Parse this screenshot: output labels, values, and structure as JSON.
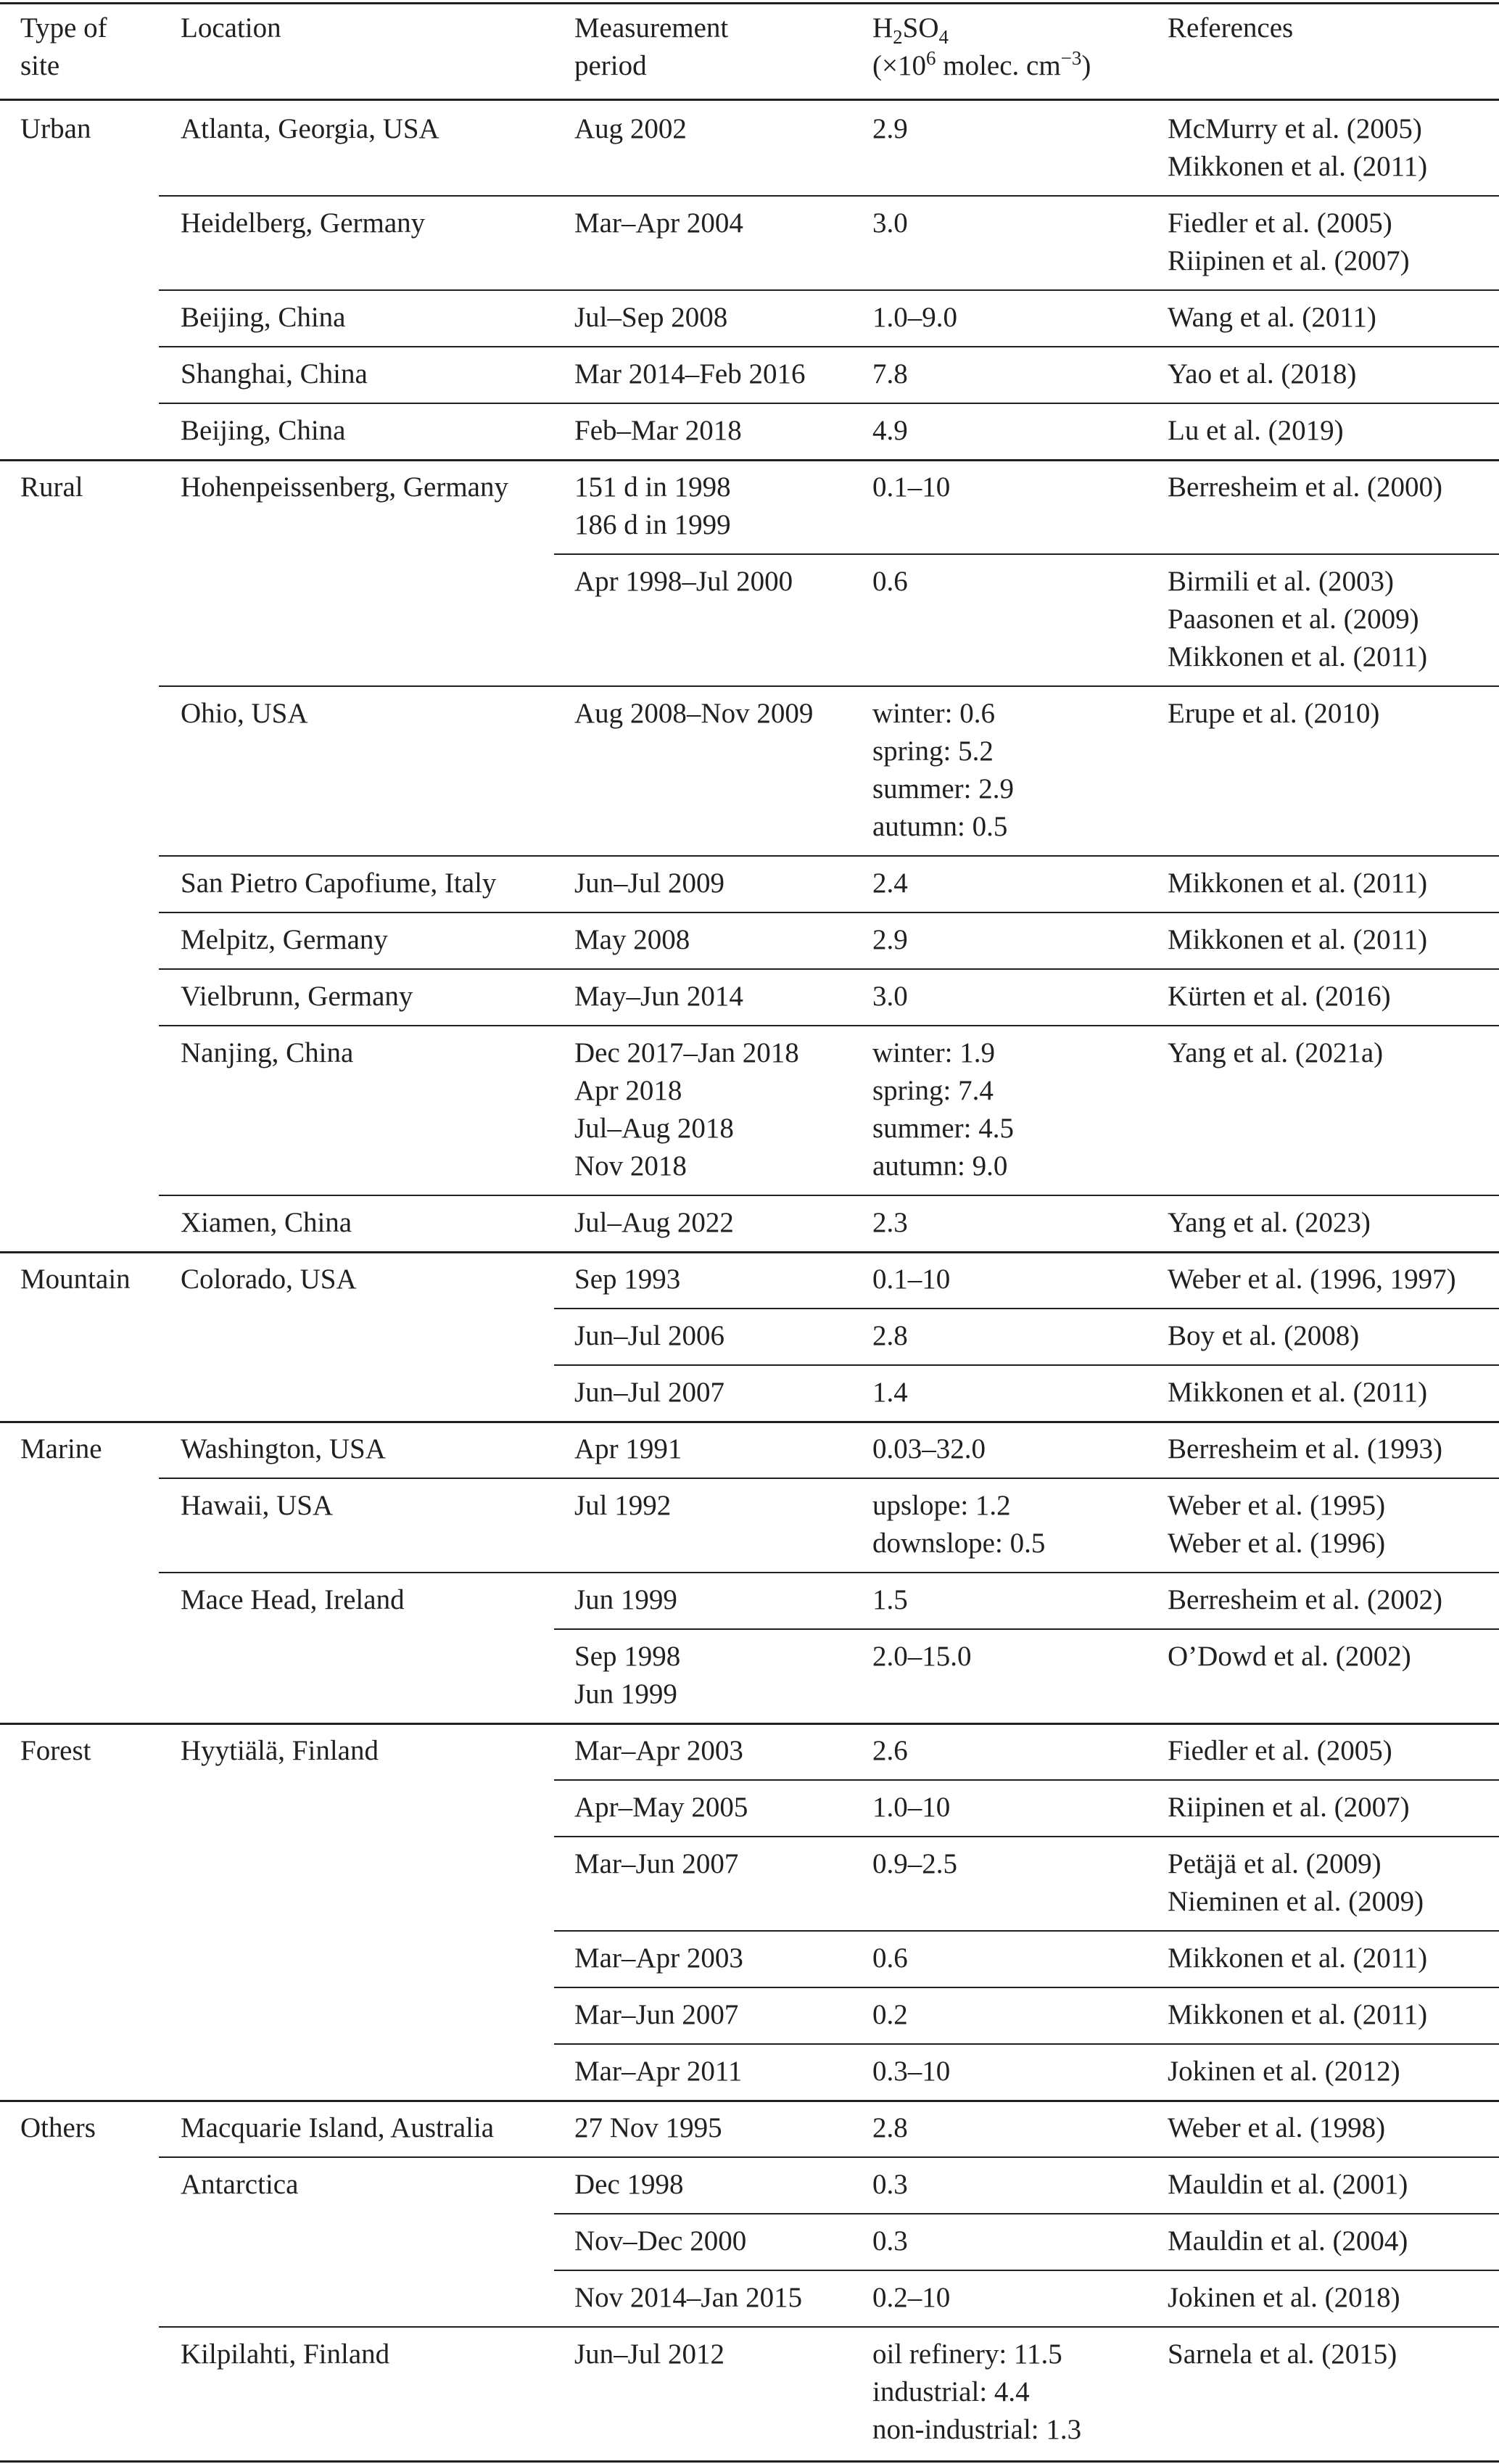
{
  "header": {
    "site": [
      "Type of",
      "site"
    ],
    "location": "Location",
    "period": [
      "Measurement",
      "period"
    ],
    "h2so4": {
      "h": "H",
      "sub1": "2",
      "so": "SO",
      "sub2": "4",
      "unit_pre": "(×10",
      "sup1": "6",
      "unit_mid": " molec. cm",
      "sup2": "−3",
      "unit_post": ")"
    },
    "references": "References"
  },
  "rows": [
    {
      "site": "Urban",
      "location": "Atlanta, Georgia, USA",
      "period": [
        "Aug 2002"
      ],
      "value": [
        "2.9"
      ],
      "refs": [
        "McMurry et al. (2005)",
        "Mikkonen et al. (2011)"
      ]
    },
    {
      "site": "",
      "location": "Heidelberg, Germany",
      "period": [
        "Mar–Apr 2004"
      ],
      "value": [
        "3.0"
      ],
      "refs": [
        "Fiedler et al. (2005)",
        "Riipinen et al. (2007)"
      ]
    },
    {
      "site": "",
      "location": "Beijing, China",
      "period": [
        "Jul–Sep 2008"
      ],
      "value": [
        "1.0–9.0"
      ],
      "refs": [
        "Wang et al. (2011)"
      ]
    },
    {
      "site": "",
      "location": "Shanghai, China",
      "period": [
        "Mar 2014–Feb 2016"
      ],
      "value": [
        "7.8"
      ],
      "refs": [
        "Yao et al. (2018)"
      ]
    },
    {
      "site": "",
      "location": "Beijing, China",
      "period": [
        "Feb–Mar 2018"
      ],
      "value": [
        "4.9"
      ],
      "refs": [
        "Lu et al. (2019)"
      ]
    },
    {
      "site": "Rural",
      "location": "Hohenpeissenberg, Germany",
      "period": [
        "151 d in 1998",
        "186 d in 1999"
      ],
      "value": [
        "0.1–10"
      ],
      "refs": [
        "Berresheim et al. (2000)"
      ]
    },
    {
      "site": "",
      "location": "",
      "period": [
        "Apr 1998–Jul 2000"
      ],
      "value": [
        "0.6"
      ],
      "refs": [
        "Birmili et al. (2003)",
        "Paasonen et al. (2009)",
        "Mikkonen et al. (2011)"
      ]
    },
    {
      "site": "",
      "location": "Ohio, USA",
      "period": [
        "Aug 2008–Nov 2009"
      ],
      "value": [
        "winter: 0.6",
        "spring: 5.2",
        "summer: 2.9",
        "autumn: 0.5"
      ],
      "refs": [
        "Erupe et al. (2010)"
      ]
    },
    {
      "site": "",
      "location": "San Pietro Capofiume, Italy",
      "period": [
        "Jun–Jul 2009"
      ],
      "value": [
        "2.4"
      ],
      "refs": [
        "Mikkonen et al. (2011)"
      ]
    },
    {
      "site": "",
      "location": "Melpitz, Germany",
      "period": [
        "May 2008"
      ],
      "value": [
        "2.9"
      ],
      "refs": [
        "Mikkonen et al. (2011)"
      ]
    },
    {
      "site": "",
      "location": "Vielbrunn, Germany",
      "period": [
        "May–Jun 2014"
      ],
      "value": [
        "3.0"
      ],
      "refs": [
        "Kürten et al. (2016)"
      ]
    },
    {
      "site": "",
      "location": "Nanjing, China",
      "period": [
        "Dec 2017–Jan 2018",
        "Apr 2018",
        "Jul–Aug 2018",
        "Nov 2018"
      ],
      "value": [
        "winter: 1.9",
        "spring: 7.4",
        "summer: 4.5",
        "autumn: 9.0"
      ],
      "refs": [
        "Yang et al. (2021a)"
      ]
    },
    {
      "site": "",
      "location": "Xiamen, China",
      "period": [
        "Jul–Aug 2022"
      ],
      "value": [
        "2.3"
      ],
      "refs": [
        "Yang et al. (2023)"
      ]
    },
    {
      "site": "Mountain",
      "location": "Colorado, USA",
      "period": [
        "Sep 1993"
      ],
      "value": [
        "0.1–10"
      ],
      "refs": [
        "Weber et al. (1996, 1997)"
      ]
    },
    {
      "site": "",
      "location": "",
      "period": [
        "Jun–Jul 2006"
      ],
      "value": [
        "2.8"
      ],
      "refs": [
        "Boy et al. (2008)"
      ]
    },
    {
      "site": "",
      "location": "",
      "period": [
        "Jun–Jul 2007"
      ],
      "value": [
        "1.4"
      ],
      "refs": [
        "Mikkonen et al. (2011)"
      ]
    },
    {
      "site": "Marine",
      "location": "Washington, USA",
      "period": [
        "Apr 1991"
      ],
      "value": [
        "0.03–32.0"
      ],
      "refs": [
        "Berresheim et al. (1993)"
      ]
    },
    {
      "site": "",
      "location": "Hawaii, USA",
      "period": [
        "Jul 1992"
      ],
      "value": [
        "upslope: 1.2",
        "downslope: 0.5"
      ],
      "refs": [
        "Weber et al. (1995)",
        "Weber et al. (1996)"
      ]
    },
    {
      "site": "",
      "location": "Mace Head, Ireland",
      "period": [
        "Jun 1999"
      ],
      "value": [
        "1.5"
      ],
      "refs": [
        "Berresheim et al. (2002)"
      ]
    },
    {
      "site": "",
      "location": "",
      "period": [
        "Sep 1998",
        "Jun 1999"
      ],
      "value": [
        "2.0–15.0"
      ],
      "refs": [
        "O’Dowd et al. (2002)"
      ]
    },
    {
      "site": "Forest",
      "location": "Hyytiälä, Finland",
      "period": [
        "Mar–Apr 2003"
      ],
      "value": [
        "2.6"
      ],
      "refs": [
        "Fiedler et al. (2005)"
      ]
    },
    {
      "site": "",
      "location": "",
      "period": [
        "Apr–May 2005"
      ],
      "value": [
        "1.0–10"
      ],
      "refs": [
        "Riipinen et al. (2007)"
      ]
    },
    {
      "site": "",
      "location": "",
      "period": [
        "Mar–Jun 2007"
      ],
      "value": [
        "0.9–2.5"
      ],
      "refs": [
        "Petäjä et al. (2009)",
        "Nieminen et al. (2009)"
      ]
    },
    {
      "site": "",
      "location": "",
      "period": [
        "Mar–Apr 2003"
      ],
      "value": [
        "0.6"
      ],
      "refs": [
        "Mikkonen et al. (2011)"
      ]
    },
    {
      "site": "",
      "location": "",
      "period": [
        "Mar–Jun 2007"
      ],
      "value": [
        "0.2"
      ],
      "refs": [
        "Mikkonen et al. (2011)"
      ]
    },
    {
      "site": "",
      "location": "",
      "period": [
        "Mar–Apr 2011"
      ],
      "value": [
        "0.3–10"
      ],
      "refs": [
        "Jokinen et al. (2012)"
      ]
    },
    {
      "site": "Others",
      "location": "Macquarie Island, Australia",
      "period": [
        "27 Nov 1995"
      ],
      "value": [
        "2.8"
      ],
      "refs": [
        "Weber et al. (1998)"
      ]
    },
    {
      "site": "",
      "location": "Antarctica",
      "period": [
        "Dec 1998"
      ],
      "value": [
        "0.3"
      ],
      "refs": [
        "Mauldin et al. (2001)"
      ]
    },
    {
      "site": "",
      "location": "",
      "period": [
        "Nov–Dec 2000"
      ],
      "value": [
        "0.3"
      ],
      "refs": [
        "Mauldin et al. (2004)"
      ]
    },
    {
      "site": "",
      "location": "",
      "period": [
        "Nov 2014–Jan 2015"
      ],
      "value": [
        "0.2–10"
      ],
      "refs": [
        "Jokinen et al. (2018)"
      ]
    },
    {
      "site": "",
      "location": "Kilpilahti, Finland",
      "period": [
        "Jun–Jul 2012"
      ],
      "value": [
        "oil refinery: 11.5",
        "industrial: 4.4",
        "non-industrial: 1.3"
      ],
      "refs": [
        "Sarnela et al. (2015)"
      ]
    }
  ]
}
